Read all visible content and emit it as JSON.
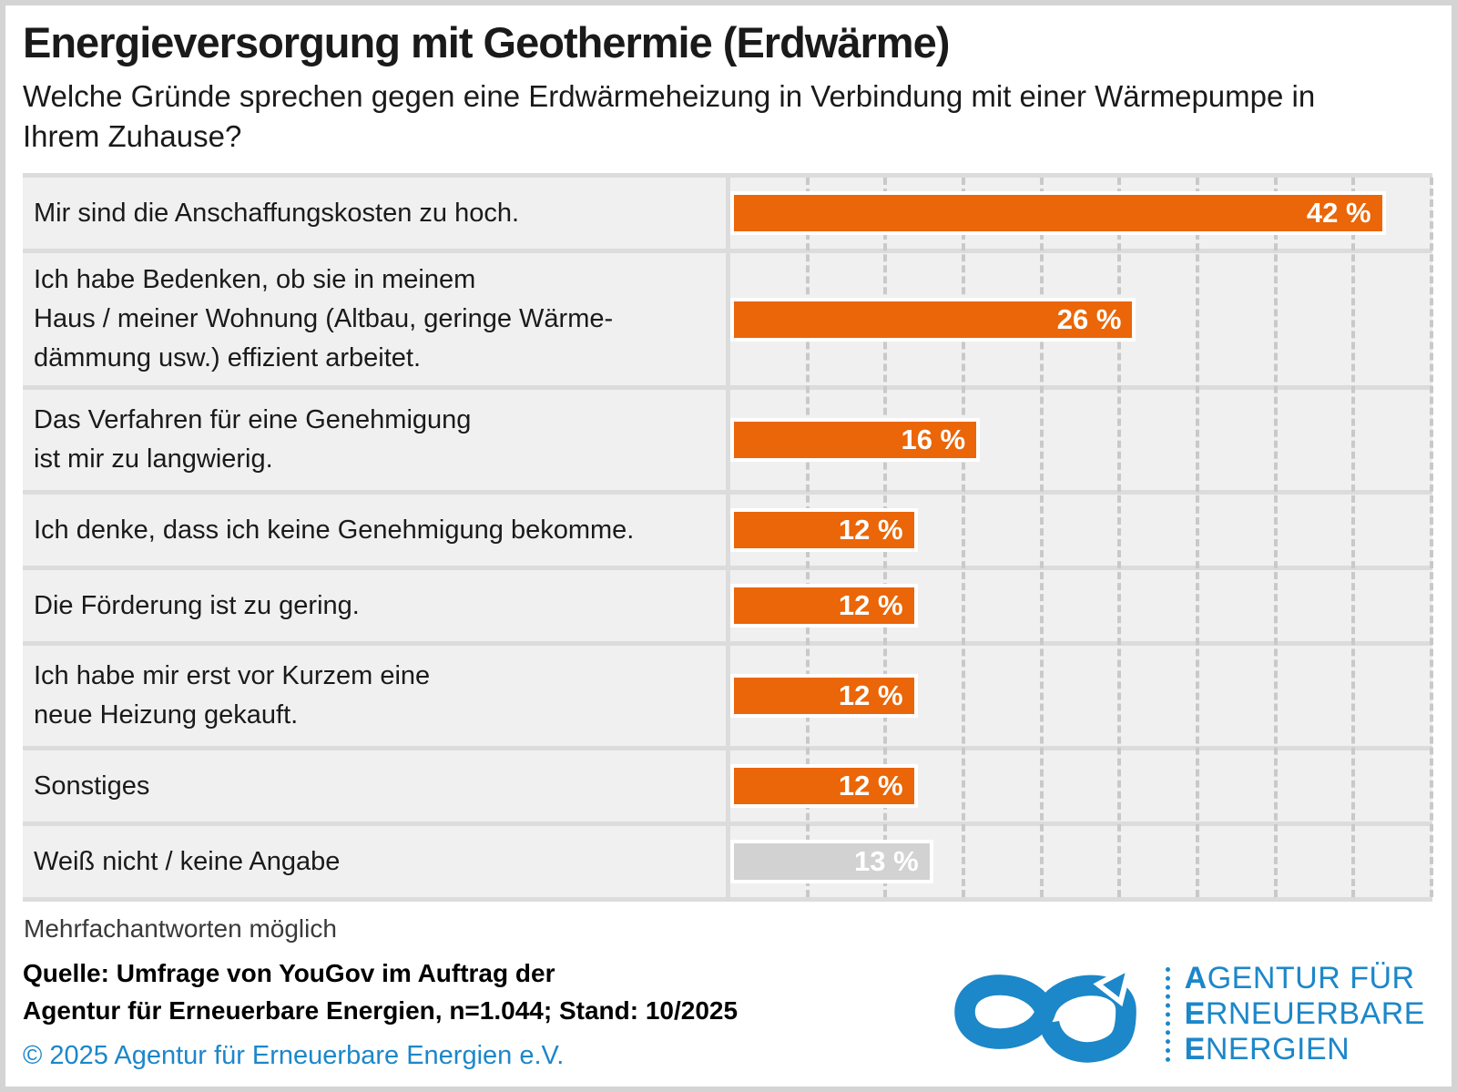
{
  "page": {
    "title": "Energieversorgung mit Geothermie (Erdwärme)",
    "subtitle": "Welche Gründe sprechen gegen eine Erdwärmeheizung in Verbindung mit einer Wärmepumpe in Ihrem Zuhause?",
    "footnote": "Mehrfachantworten möglich",
    "source_line1": "Quelle: Umfrage von YouGov im Auftrag der",
    "source_line2": "Agentur für Erneuerbare Energien, n=1.044; Stand: 10/2025",
    "copyright": "© 2025 Agentur für Erneuerbare Energien e.V."
  },
  "chart_data": {
    "type": "bar",
    "orientation": "horizontal",
    "unit": "%",
    "xlim": [
      0,
      45
    ],
    "gridline_step": 5,
    "grid": true,
    "categories": [
      "Mir sind die Anschaffungskosten zu hoch.",
      "Ich habe Bedenken, ob sie in meinem Haus / meiner Wohnung (Altbau, geringe Wärmedämmung usw.) effizient arbeitet.",
      "Das Verfahren für eine Genehmigung ist mir zu langwierig.",
      "Ich denke, dass ich keine Genehmigung bekomme.",
      "Die Förderung ist zu gering.",
      "Ich habe mir erst vor Kurzem eine neue Heizung gekauft.",
      "Sonstiges",
      "Weiß nicht / keine Angabe"
    ],
    "values": [
      42,
      26,
      16,
      12,
      12,
      12,
      12,
      13
    ],
    "rows": [
      {
        "label_lines": [
          "Mir sind die Anschaffungskosten zu hoch."
        ],
        "value": 42,
        "display": "42 %",
        "style": "primary"
      },
      {
        "label_lines": [
          "Ich habe Bedenken, ob sie in meinem",
          "Haus / meiner Wohnung (Altbau, geringe Wärme-",
          "dämmung usw.) effizient arbeitet."
        ],
        "value": 26,
        "display": "26 %",
        "style": "primary"
      },
      {
        "label_lines": [
          "Das Verfahren für eine Genehmigung",
          "ist mir zu langwierig."
        ],
        "value": 16,
        "display": "16 %",
        "style": "primary"
      },
      {
        "label_lines": [
          "Ich denke, dass ich keine Genehmigung bekomme."
        ],
        "value": 12,
        "display": "12 %",
        "style": "primary"
      },
      {
        "label_lines": [
          "Die Förderung ist zu gering."
        ],
        "value": 12,
        "display": "12 %",
        "style": "primary"
      },
      {
        "label_lines": [
          "Ich habe mir erst vor Kurzem eine",
          "neue Heizung gekauft."
        ],
        "value": 12,
        "display": "12 %",
        "style": "primary"
      },
      {
        "label_lines": [
          "Sonstiges"
        ],
        "value": 12,
        "display": "12 %",
        "style": "primary"
      },
      {
        "label_lines": [
          "Weiß nicht / keine Angabe"
        ],
        "value": 13,
        "display": "13 %",
        "style": "neutral"
      }
    ],
    "colors": {
      "primary_bar": "#ea6608",
      "neutral_bar": "#d2d2d2",
      "value_text": "#ffffff",
      "row_background": "#f0f0f0",
      "separator": "#dcdcdc",
      "gridline": "#c9c9c9"
    }
  },
  "logo": {
    "symbol": "infinity-arrow",
    "color": "#1c87c9",
    "lines": [
      "AGENTUR FÜR",
      "ERNEUERBARE",
      "ENERGIEN"
    ]
  }
}
